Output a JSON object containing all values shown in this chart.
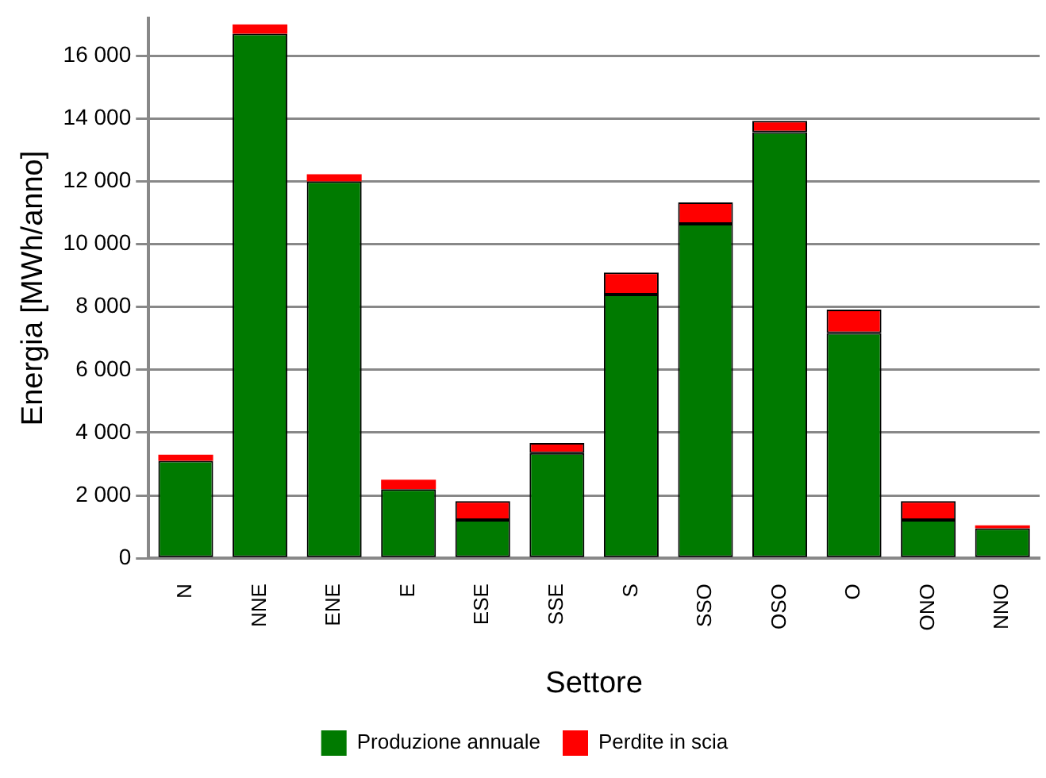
{
  "chart_data": {
    "type": "bar",
    "stacked": true,
    "xlabel": "Settore",
    "ylabel": "Energia [MWh/anno]",
    "categories": [
      "N",
      "NNE",
      "ENE",
      "E",
      "ESE",
      "SSE",
      "S",
      "SSO",
      "OSO",
      "O",
      "ONO",
      "NNO"
    ],
    "series": [
      {
        "name": "Produzione annuale",
        "color": "#007a00",
        "values": [
          3100,
          16700,
          12000,
          2200,
          1220,
          3350,
          8400,
          10650,
          13570,
          7170,
          1220,
          950
        ]
      },
      {
        "name": "Perdite in scia",
        "color": "#ff0000",
        "values": [
          200,
          300,
          230,
          300,
          600,
          320,
          700,
          680,
          360,
          750,
          600,
          100
        ]
      }
    ],
    "ylim": [
      0,
      17200
    ],
    "yticks": [
      0,
      {
        "value": 2000,
        "label": "2 000"
      },
      {
        "value": 4000,
        "label": "4 000"
      },
      {
        "value": 6000,
        "label": "6 000"
      },
      {
        "value": 8000,
        "label": "8 000"
      },
      {
        "value": 10000,
        "label": "10 000"
      },
      {
        "value": 12000,
        "label": "12 000"
      },
      {
        "value": 14000,
        "label": "14 000"
      },
      {
        "value": 16000,
        "label": "16 000"
      }
    ],
    "grid": "y",
    "legend": "bottom"
  }
}
